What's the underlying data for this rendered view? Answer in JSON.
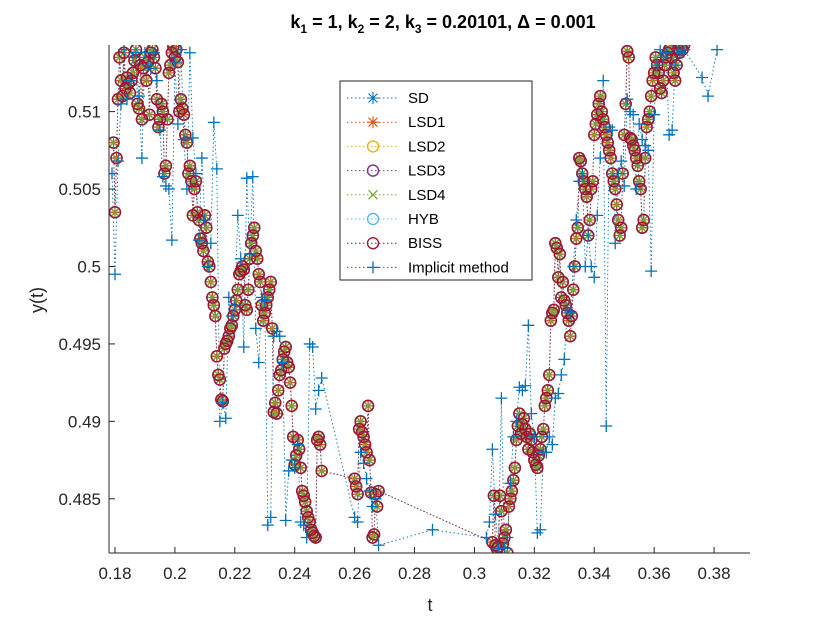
{
  "chart_data": {
    "type": "line",
    "title_parts": {
      "k1_label": "k",
      "k1_sub": "1",
      "k1_val": " = 1, ",
      "k2_label": "k",
      "k2_sub": "2",
      "k2_val": " = 2, ",
      "k3_label": "k",
      "k3_sub": "3",
      "k3_val": " = 0.20101, ",
      "delta": "Δ = 0.001"
    },
    "xlabel": "t",
    "ylabel": "y(t)",
    "xlim": [
      0.178,
      0.392
    ],
    "ylim": [
      0.4815,
      0.5143
    ],
    "xticks": [
      0.18,
      0.2,
      0.22,
      0.24,
      0.26,
      0.28,
      0.3,
      0.32,
      0.34,
      0.36,
      0.38
    ],
    "xtick_labels": [
      "0.18",
      "0.2",
      "0.22",
      "0.24",
      "0.26",
      "0.28",
      "0.3",
      "0.32",
      "0.34",
      "0.36",
      "0.38"
    ],
    "yticks": [
      0.485,
      0.49,
      0.495,
      0.5,
      0.505,
      0.51
    ],
    "ytick_labels": [
      "0.485",
      "0.49",
      "0.495",
      "0.5",
      "0.505",
      "0.51"
    ],
    "grid": false,
    "legend_position": "top-center",
    "colors": {
      "SD": "#0072BD",
      "LSD1": "#D95319",
      "LSD2": "#EDB120",
      "LSD3": "#7E2F8E",
      "LSD4": "#77AC30",
      "HYB": "#4DBEEE",
      "BISS": "#A2142F",
      "Implicit method": "#0072BD"
    },
    "markers": {
      "SD": "asterisk",
      "LSD1": "asterisk",
      "LSD2": "circle",
      "LSD3": "circle",
      "LSD4": "cross",
      "HYB": "circle",
      "BISS": "circle",
      "Implicit method": "plus"
    },
    "legend": [
      "SD",
      "LSD1",
      "LSD2",
      "LSD3",
      "LSD4",
      "HYB",
      "BISS",
      "Implicit method"
    ],
    "series": [
      {
        "name": "BISS",
        "x": [
          0.1795,
          0.18,
          0.1805,
          0.181,
          0.1815,
          0.182,
          0.1825,
          0.183,
          0.1835,
          0.184,
          0.1845,
          0.185,
          0.1855,
          0.186,
          0.1865,
          0.187,
          0.1875,
          0.188,
          0.1885,
          0.189,
          0.1895,
          0.19,
          0.1905,
          0.191,
          0.1915,
          0.192,
          0.1925,
          0.193,
          0.1935,
          0.194,
          0.1945,
          0.195,
          0.1955,
          0.196,
          0.1965,
          0.197,
          0.1975,
          0.198,
          0.1985,
          0.199,
          0.1995,
          0.2,
          0.2005,
          0.201,
          0.2015,
          0.202,
          0.2025,
          0.203,
          0.2035,
          0.204,
          0.2045,
          0.205,
          0.2055,
          0.206,
          0.2065,
          0.207,
          0.2075,
          0.208,
          0.2085,
          0.209,
          0.2095,
          0.21,
          0.2105,
          0.211,
          0.2115,
          0.212,
          0.2125,
          0.213,
          0.2135,
          0.214,
          0.2145,
          0.215,
          0.2155,
          0.216,
          0.2165,
          0.217,
          0.2175,
          0.218,
          0.2185,
          0.219,
          0.2195,
          0.22,
          0.2205,
          0.221,
          0.2215,
          0.222,
          0.2225,
          0.223,
          0.2235,
          0.224,
          0.2245,
          0.225,
          0.2255,
          0.226,
          0.2265,
          0.227,
          0.2275,
          0.228,
          0.2285,
          0.229,
          0.2295,
          0.23,
          0.2305,
          0.231,
          0.2315,
          0.232,
          0.2325,
          0.233,
          0.2335,
          0.234,
          0.2345,
          0.235,
          0.2355,
          0.236,
          0.2365,
          0.237,
          0.2375,
          0.238,
          0.2385,
          0.239,
          0.2395,
          0.24,
          0.2405,
          0.241,
          0.2415,
          0.242,
          0.2425,
          0.243,
          0.2435,
          0.244,
          0.2445,
          0.245,
          0.2455,
          0.246,
          0.2465,
          0.247,
          0.2475,
          0.248,
          0.2485,
          0.249,
          0.26,
          0.2605,
          0.261,
          0.2615,
          0.262,
          0.2625,
          0.263,
          0.2635,
          0.264,
          0.2645,
          0.265,
          0.2655,
          0.266,
          0.2665,
          0.267,
          0.2675,
          0.268,
          0.306,
          0.3065,
          0.307,
          0.3075,
          0.308,
          0.3085,
          0.309,
          0.3095,
          0.31,
          0.3105,
          0.311,
          0.3115,
          0.312,
          0.3125,
          0.313,
          0.3135,
          0.314,
          0.3145,
          0.315,
          0.3155,
          0.316,
          0.3165,
          0.317,
          0.3175,
          0.318,
          0.3185,
          0.319,
          0.3195,
          0.32,
          0.3205,
          0.321,
          0.3215,
          0.322,
          0.3225,
          0.323,
          0.3235,
          0.324,
          0.3245,
          0.325,
          0.3255,
          0.326,
          0.3265,
          0.327,
          0.3275,
          0.328,
          0.3285,
          0.329,
          0.3295,
          0.33,
          0.3305,
          0.331,
          0.3315,
          0.332,
          0.3325,
          0.333,
          0.3335,
          0.334,
          0.3345,
          0.335,
          0.3355,
          0.336,
          0.3365,
          0.337,
          0.3375,
          0.338,
          0.3385,
          0.339,
          0.3395,
          0.34,
          0.3405,
          0.341,
          0.3415,
          0.342,
          0.3425,
          0.343,
          0.3435,
          0.344,
          0.3445,
          0.345,
          0.3455,
          0.346,
          0.3465,
          0.347,
          0.3475,
          0.348,
          0.3485,
          0.349,
          0.3495,
          0.35,
          0.3505,
          0.351,
          0.3515,
          0.352,
          0.3525,
          0.353,
          0.3535,
          0.354,
          0.3545,
          0.355,
          0.3555,
          0.356,
          0.3565,
          0.357,
          0.3575,
          0.358,
          0.3585,
          0.359,
          0.3595,
          0.36,
          0.3605,
          0.361,
          0.3615,
          0.362,
          0.3625,
          0.363,
          0.3635,
          0.364,
          0.3645,
          0.365,
          0.3655,
          0.366,
          0.3665,
          0.367,
          0.3675,
          0.368,
          0.3685,
          0.369,
          0.3695,
          0.37
        ],
        "y": [
          0.508,
          0.5035,
          0.507,
          0.5108,
          0.5135,
          0.512,
          0.511,
          0.5138,
          0.5115,
          0.5122,
          0.5118,
          0.5112,
          0.512,
          0.5125,
          0.5133,
          0.514,
          0.5105,
          0.5102,
          0.513,
          0.5095,
          0.5128,
          0.5135,
          0.512,
          0.5132,
          0.5098,
          0.5138,
          0.514,
          0.5135,
          0.5128,
          0.5108,
          0.509,
          0.5095,
          0.5105,
          0.51,
          0.506,
          0.5065,
          0.5095,
          0.5125,
          0.513,
          0.5138,
          0.5142,
          0.5135,
          0.514,
          0.5132,
          0.51,
          0.5108,
          0.5102,
          0.5098,
          0.5085,
          0.508,
          0.506,
          0.5065,
          0.5055,
          0.5033,
          0.505,
          0.5055,
          0.5035,
          0.503,
          0.5018,
          0.5015,
          0.501,
          0.5033,
          0.5025,
          0.5003,
          0.5,
          0.499,
          0.498,
          0.4975,
          0.4968,
          0.4942,
          0.493,
          0.4927,
          0.4914,
          0.4913,
          0.4947,
          0.495,
          0.4952,
          0.4955,
          0.496,
          0.4962,
          0.4968,
          0.4972,
          0.4978,
          0.4985,
          0.4995,
          0.4997,
          0.5,
          0.4998,
          0.4975,
          0.4972,
          0.4985,
          0.5005,
          0.5015,
          0.502,
          0.5025,
          0.501,
          0.5005,
          0.4995,
          0.499,
          0.4975,
          0.4965,
          0.497,
          0.4975,
          0.498,
          0.4985,
          0.499,
          0.496,
          0.4906,
          0.4912,
          0.4905,
          0.492,
          0.493,
          0.4933,
          0.494,
          0.4945,
          0.4948,
          0.4938,
          0.4935,
          0.4925,
          0.491,
          0.489,
          0.4872,
          0.4878,
          0.4888,
          0.4882,
          0.487,
          0.4855,
          0.4852,
          0.4848,
          0.4842,
          0.4838,
          0.4835,
          0.483,
          0.4828,
          0.4826,
          0.4825,
          0.4888,
          0.489,
          0.4885,
          0.4868,
          0.4863,
          0.4858,
          0.4853,
          0.4895,
          0.49,
          0.4893,
          0.489,
          0.4885,
          0.488,
          0.491,
          0.4875,
          0.4854,
          0.4825,
          0.4827,
          0.4853,
          0.4845,
          0.4855,
          0.4822,
          0.4852,
          0.482,
          0.4818,
          0.4819,
          0.4852,
          0.4842,
          0.4821,
          0.4825,
          0.483,
          0.4815,
          0.4845,
          0.485,
          0.4855,
          0.4862,
          0.487,
          0.4888,
          0.4897,
          0.4905,
          0.4892,
          0.4898,
          0.4902,
          0.4895,
          0.489,
          0.4882,
          0.4892,
          0.4888,
          0.488,
          0.4875,
          0.4872,
          0.487,
          0.4878,
          0.4882,
          0.489,
          0.4895,
          0.491,
          0.4915,
          0.492,
          0.493,
          0.4965,
          0.497,
          0.4972,
          0.5015,
          0.5012,
          0.4993,
          0.5008,
          0.498,
          0.499,
          0.4978,
          0.4975,
          0.497,
          0.4965,
          0.4955,
          0.4968,
          0.4985,
          0.5,
          0.5018,
          0.5025,
          0.507,
          0.5068,
          0.506,
          0.5055,
          0.505,
          0.5045,
          0.502,
          0.503,
          0.505,
          0.5055,
          0.5085,
          0.5092,
          0.5098,
          0.5105,
          0.511,
          0.51,
          0.5095,
          0.509,
          0.5085,
          0.508,
          0.5075,
          0.507,
          0.506,
          0.5055,
          0.505,
          0.504,
          0.503,
          0.502,
          0.5025,
          0.506,
          0.5085,
          0.5105,
          0.5139,
          0.5135,
          0.5083,
          0.5082,
          0.5078,
          0.5075,
          0.507,
          0.5065,
          0.5055,
          0.505,
          0.5025,
          0.503,
          0.507,
          0.509,
          0.5095,
          0.51,
          0.511,
          0.512,
          0.5125,
          0.5135,
          0.513,
          0.5125,
          0.5115,
          0.5112,
          0.512,
          0.513,
          0.5135,
          0.5138,
          0.514,
          0.5142,
          0.5135,
          0.5125,
          0.512,
          0.513,
          0.514,
          0.5138,
          0.5142,
          0.514,
          0.5143
        ]
      },
      {
        "name": "Implicit method",
        "x": [
          0.179,
          0.18,
          0.181,
          0.182,
          0.183,
          0.184,
          0.185,
          0.186,
          0.187,
          0.188,
          0.189,
          0.19,
          0.191,
          0.192,
          0.193,
          0.194,
          0.195,
          0.196,
          0.197,
          0.198,
          0.199,
          0.2,
          0.201,
          0.202,
          0.203,
          0.204,
          0.205,
          0.206,
          0.207,
          0.208,
          0.209,
          0.21,
          0.211,
          0.212,
          0.213,
          0.214,
          0.215,
          0.216,
          0.217,
          0.218,
          0.219,
          0.22,
          0.221,
          0.222,
          0.223,
          0.224,
          0.225,
          0.226,
          0.227,
          0.228,
          0.229,
          0.23,
          0.231,
          0.232,
          0.233,
          0.234,
          0.235,
          0.236,
          0.237,
          0.238,
          0.239,
          0.24,
          0.241,
          0.242,
          0.243,
          0.244,
          0.245,
          0.246,
          0.247,
          0.248,
          0.249,
          0.26,
          0.261,
          0.262,
          0.263,
          0.264,
          0.265,
          0.266,
          0.267,
          0.268,
          0.286,
          0.304,
          0.305,
          0.306,
          0.307,
          0.308,
          0.309,
          0.31,
          0.311,
          0.312,
          0.313,
          0.314,
          0.315,
          0.316,
          0.317,
          0.318,
          0.319,
          0.32,
          0.321,
          0.322,
          0.323,
          0.324,
          0.325,
          0.326,
          0.327,
          0.328,
          0.329,
          0.33,
          0.331,
          0.332,
          0.333,
          0.334,
          0.335,
          0.336,
          0.337,
          0.338,
          0.339,
          0.34,
          0.341,
          0.342,
          0.343,
          0.344,
          0.345,
          0.346,
          0.347,
          0.348,
          0.349,
          0.35,
          0.351,
          0.352,
          0.353,
          0.354,
          0.355,
          0.356,
          0.357,
          0.358,
          0.359,
          0.36,
          0.361,
          0.362,
          0.363,
          0.364,
          0.365,
          0.366,
          0.367,
          0.368,
          0.369,
          0.37,
          0.376,
          0.378,
          0.381
        ],
        "y": [
          0.506,
          0.4995,
          0.5068,
          0.5105,
          0.514,
          0.5108,
          0.512,
          0.5135,
          0.5138,
          0.511,
          0.507,
          0.5138,
          0.513,
          0.5128,
          0.5138,
          0.512,
          0.5088,
          0.5058,
          0.5052,
          0.505,
          0.5017,
          0.5132,
          0.5092,
          0.514,
          0.5082,
          0.505,
          0.5138,
          0.5083,
          0.506,
          0.5017,
          0.507,
          0.503,
          0.5,
          0.5015,
          0.5093,
          0.5063,
          0.49,
          0.4912,
          0.4902,
          0.498,
          0.4968,
          0.4975,
          0.5033,
          0.5005,
          0.4948,
          0.5057,
          0.5008,
          0.5058,
          0.496,
          0.4938,
          0.498,
          0.4978,
          0.4833,
          0.4838,
          0.4955,
          0.4958,
          0.4955,
          0.4938,
          0.4836,
          0.4868,
          0.4875,
          0.487,
          0.4885,
          0.4835,
          0.4833,
          0.4825,
          0.495,
          0.4948,
          0.4908,
          0.492,
          0.4928,
          0.4838,
          0.4835,
          0.488,
          0.4873,
          0.4863,
          0.4855,
          0.4845,
          0.485,
          0.482,
          0.483,
          0.4825,
          0.4835,
          0.4882,
          0.484,
          0.4818,
          0.4915,
          0.4818,
          0.4825,
          0.486,
          0.489,
          0.49,
          0.4922,
          0.492,
          0.4923,
          0.4962,
          0.4905,
          0.489,
          0.4828,
          0.483,
          0.488,
          0.488,
          0.489,
          0.4885,
          0.4915,
          0.4918,
          0.493,
          0.494,
          0.4972,
          0.497,
          0.5,
          0.503,
          0.5055,
          0.506,
          0.5,
          0.502,
          0.5,
          0.4993,
          0.5033,
          0.507,
          0.512,
          0.4897,
          0.509,
          0.5088,
          0.5015,
          0.506,
          0.5068,
          0.5052,
          0.5108,
          0.51,
          0.5098,
          0.505,
          0.5092,
          0.5082,
          0.5078,
          0.5075,
          0.4997,
          0.5098,
          0.513,
          0.514,
          0.5135,
          0.5138,
          0.5085,
          0.5088,
          0.513,
          0.514,
          0.5138,
          0.514,
          0.5122,
          0.511,
          0.514
        ]
      }
    ]
  }
}
